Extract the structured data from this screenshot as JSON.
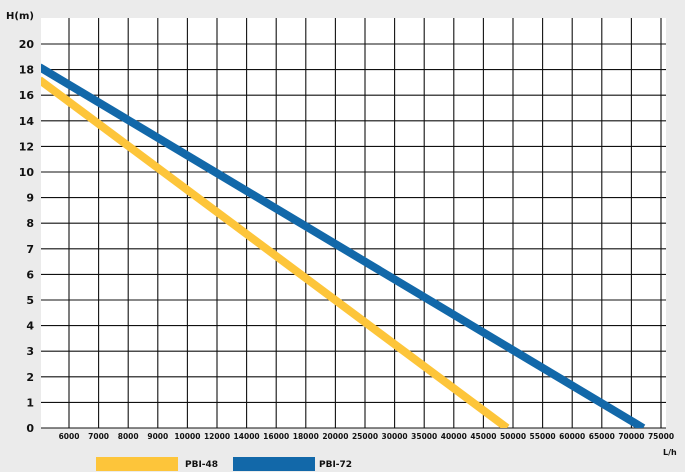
{
  "chart_data": {
    "type": "line",
    "ylabel": "H(m)",
    "xlabel": "L/h",
    "y_ticks": [
      "0",
      "1",
      "2",
      "3",
      "4",
      "5",
      "6",
      "7",
      "8",
      "9",
      "10",
      "12",
      "14",
      "16",
      "18",
      "20"
    ],
    "x_ticks": [
      "6000",
      "7000",
      "8000",
      "9000",
      "10000",
      "12000",
      "14000",
      "16000",
      "18000",
      "20000",
      "25000",
      "30000",
      "35000",
      "40000",
      "45000",
      "50000",
      "55000",
      "60000",
      "65000",
      "70000",
      "75000"
    ],
    "series": [
      {
        "name": "PBI-48",
        "color": "#fdc53a",
        "points": [
          {
            "x": 5000,
            "y": 17.2
          },
          {
            "x": 49000,
            "y": 0
          }
        ]
      },
      {
        "name": "PBI-72",
        "color": "#1268a9",
        "points": [
          {
            "x": 5000,
            "y": 18.2
          },
          {
            "x": 72000,
            "y": 0
          }
        ]
      }
    ],
    "grid": true,
    "legend_position": "bottom"
  }
}
